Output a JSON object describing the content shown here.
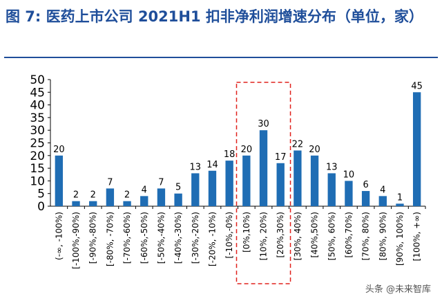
{
  "title": "图 7:  医药上市公司 2021H1 扣非净利润增速分布（单位，家）",
  "watermark": "头条 @未来智库",
  "chart_data": {
    "type": "bar",
    "categories": [
      "(-∞, -100%)",
      "[-100%,-90%)",
      "[-90%,-80%)",
      "[-80%, -70%)",
      "[-70%,-60%)",
      "[-60%,-50%)",
      "[-50%,-40%)",
      "[-40%,-30%)",
      "[-30%,-20%)",
      "[-20%, -10%)",
      "[-10%,-0%)",
      "[0%,10%)",
      "[10%, 20%)",
      "[20%,30%)",
      "[30%, 40%)",
      "[40%,50%)",
      "[50%, 60%)",
      "[60%,70%)",
      "[70%, 80%)",
      "[80%, 90%)",
      "[90%, 100%)",
      "[100%, +∞)"
    ],
    "values": [
      20,
      2,
      2,
      7,
      2,
      4,
      7,
      5,
      13,
      14,
      18,
      20,
      30,
      17,
      22,
      20,
      13,
      10,
      6,
      4,
      1,
      45
    ],
    "yticks": [
      0,
      5,
      10,
      15,
      20,
      25,
      30,
      35,
      40,
      45,
      50
    ],
    "ylim": [
      0,
      50
    ],
    "bar_color": "#1f6db4",
    "highlight_color": "#e0201b",
    "highlight_categories": [
      "[0%,10%)",
      "[10%, 20%)",
      "[20%,30%)"
    ],
    "grid": false
  }
}
